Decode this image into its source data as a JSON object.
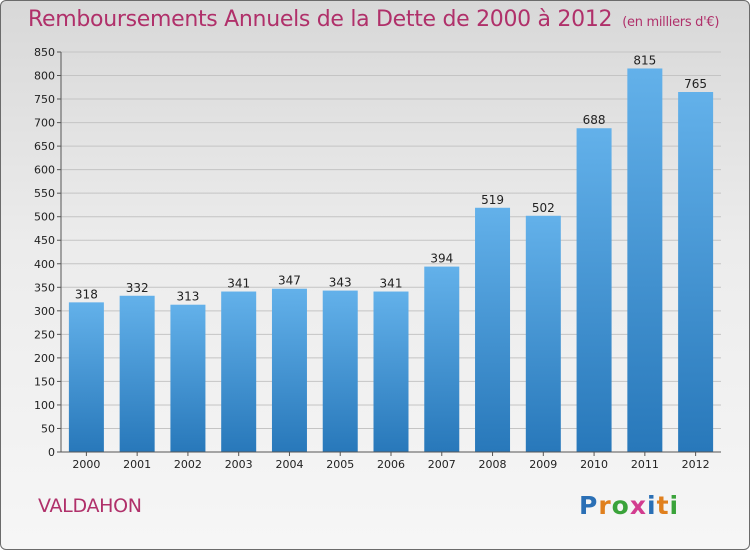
{
  "title": "Remboursements Annuels de la Dette de 2000 à 2012",
  "unit": "(en milliers d'€)",
  "commune": "VALDAHON",
  "logo": {
    "letters": [
      "P",
      "r",
      "o",
      "x",
      "i",
      "t",
      "i"
    ],
    "colors": [
      "#2a6fb5",
      "#e0801e",
      "#3aa33a",
      "#d23c8f",
      "#2a6fb5",
      "#e0801e",
      "#3aa33a"
    ]
  },
  "chart_data": {
    "type": "bar",
    "categories": [
      "2000",
      "2001",
      "2002",
      "2003",
      "2004",
      "2005",
      "2006",
      "2007",
      "2008",
      "2009",
      "2010",
      "2011",
      "2012"
    ],
    "values": [
      318,
      332,
      313,
      341,
      347,
      343,
      341,
      394,
      519,
      502,
      688,
      815,
      765
    ],
    "ylim": [
      0,
      850
    ],
    "yticks": [
      0,
      50,
      100,
      150,
      200,
      250,
      300,
      350,
      400,
      450,
      500,
      550,
      600,
      650,
      700,
      750,
      800,
      850
    ],
    "xlabel": "",
    "ylabel": "",
    "grid": true,
    "colors": {
      "bar_top": "#63b1ea",
      "bar_bottom": "#2878ba",
      "grid": "#c4c4c4",
      "axis": "#555555",
      "text": "#222222"
    }
  }
}
